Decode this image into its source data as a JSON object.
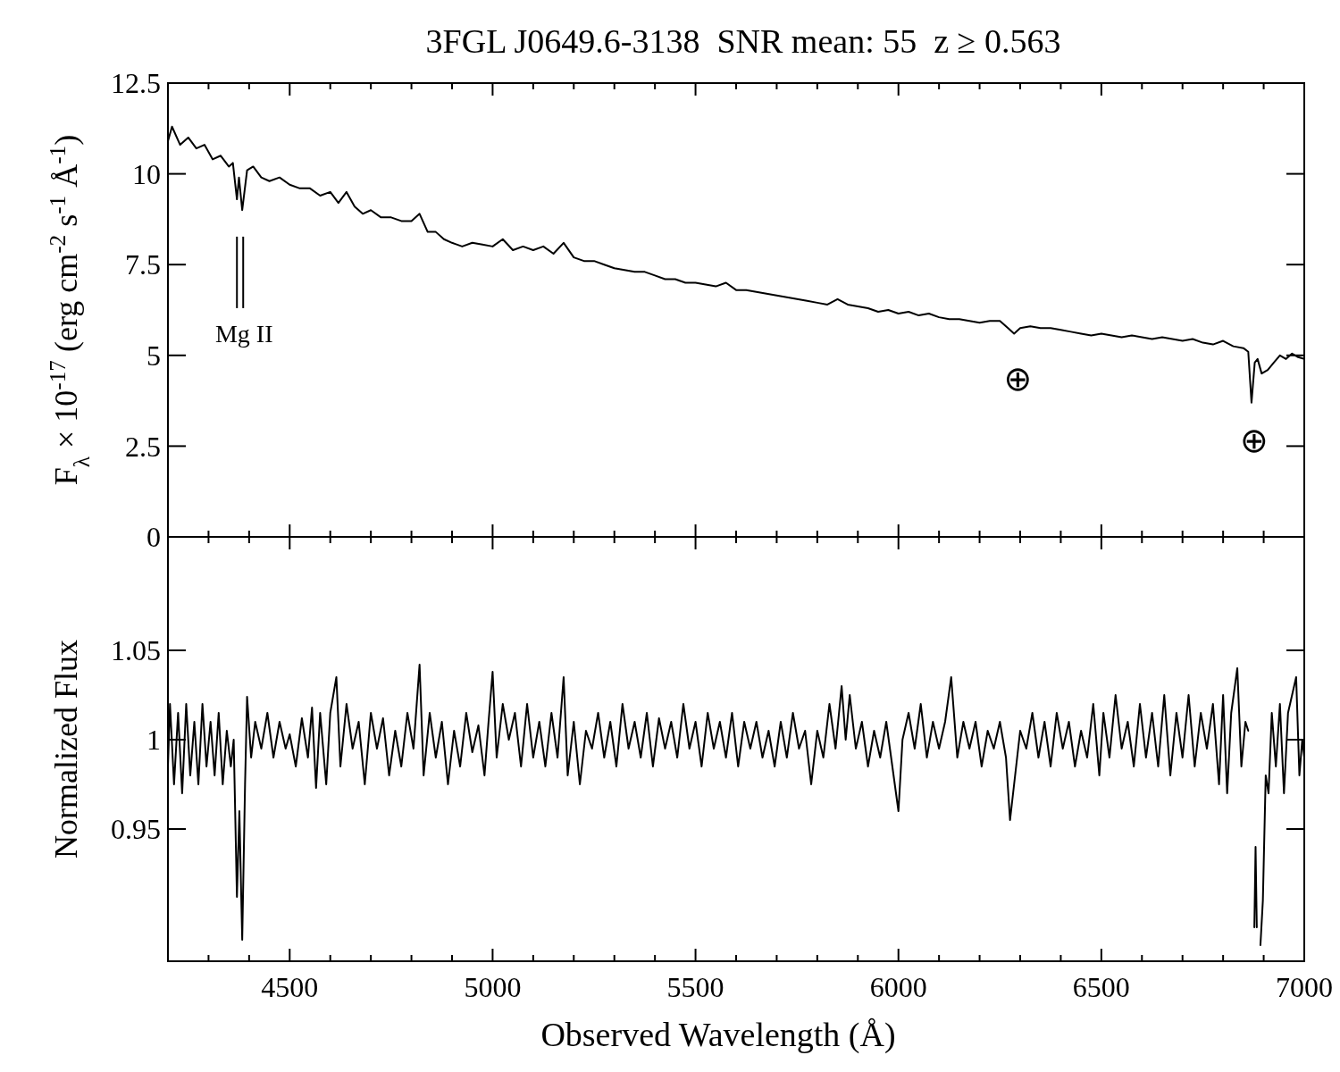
{
  "chart_data": [
    {
      "type": "line",
      "title": "3FGL J0649.6-3138  SNR mean: 55  z ≥ 0.563",
      "ylabel": "F$_{λ}$ × 10$^{-17}$ (erg cm$^{-2}$ s$^{-1}$ Å$^{-1}$)",
      "xlim": [
        4200,
        7000
      ],
      "ylim": [
        0,
        12.5
      ],
      "yticks": [
        0,
        2.5,
        5,
        7.5,
        10,
        12.5
      ],
      "xticks": [
        {
          "value": 4300,
          "label": null
        },
        {
          "value": 4400,
          "label": null
        },
        4500,
        {
          "value": 4600,
          "label": null
        },
        {
          "value": 4700,
          "label": null
        },
        {
          "value": 4800,
          "label": null
        },
        {
          "value": 4900,
          "label": null
        },
        5000,
        {
          "value": 5100,
          "label": null
        },
        {
          "value": 5200,
          "label": null
        },
        {
          "value": 5300,
          "label": null
        },
        {
          "value": 5400,
          "label": null
        },
        5500,
        {
          "value": 5600,
          "label": null
        },
        {
          "value": 5700,
          "label": null
        },
        {
          "value": 5800,
          "label": null
        },
        {
          "value": 5900,
          "label": null
        },
        6000,
        {
          "value": 6100,
          "label": null
        },
        {
          "value": 6200,
          "label": null
        },
        {
          "value": 6300,
          "label": null
        },
        {
          "value": 6400,
          "label": null
        },
        6500,
        {
          "value": 6600,
          "label": null
        },
        {
          "value": 6700,
          "label": null
        },
        {
          "value": 6800,
          "label": null
        },
        {
          "value": 6900,
          "label": null
        },
        7000
      ],
      "tick_labels": "y",
      "grid": false,
      "annotations": [
        "Mg II",
        "⊕",
        "⊕"
      ],
      "series": [
        {
          "color": "#000000",
          "x": [
            4200,
            4210,
            4230,
            4250,
            4270,
            4290,
            4310,
            4330,
            4350,
            4360,
            4370,
            4375,
            4383,
            4395,
            4410,
            4430,
            4450,
            4475,
            4500,
            4525,
            4550,
            4575,
            4600,
            4620,
            4640,
            4660,
            4680,
            4700,
            4725,
            4750,
            4775,
            4800,
            4820,
            4840,
            4860,
            4880,
            4900,
            4925,
            4950,
            4975,
            5000,
            5025,
            5050,
            5075,
            5100,
            5125,
            5150,
            5175,
            5200,
            5225,
            5250,
            5275,
            5300,
            5325,
            5350,
            5375,
            5400,
            5425,
            5450,
            5475,
            5500,
            5525,
            5550,
            5575,
            5600,
            5625,
            5650,
            5675,
            5700,
            5725,
            5750,
            5775,
            5800,
            5825,
            5850,
            5875,
            5900,
            5925,
            5950,
            5975,
            6000,
            6025,
            6050,
            6075,
            6100,
            6125,
            6150,
            6175,
            6200,
            6225,
            6250,
            6270,
            6285,
            6300,
            6325,
            6350,
            6375,
            6400,
            6425,
            6450,
            6475,
            6500,
            6525,
            6550,
            6575,
            6600,
            6625,
            6650,
            6675,
            6700,
            6725,
            6750,
            6775,
            6800,
            6825,
            6850,
            6862,
            6870,
            6878,
            6885,
            6895,
            6910,
            6925,
            6940,
            6955,
            6970,
            6985,
            7000
          ],
          "values": [
            10.9,
            11.3,
            10.8,
            11.0,
            10.7,
            10.8,
            10.4,
            10.5,
            10.2,
            10.3,
            9.3,
            9.9,
            9.0,
            10.1,
            10.2,
            9.9,
            9.8,
            9.9,
            9.7,
            9.6,
            9.6,
            9.4,
            9.5,
            9.2,
            9.5,
            9.1,
            8.9,
            9.0,
            8.8,
            8.8,
            8.7,
            8.7,
            8.9,
            8.4,
            8.4,
            8.2,
            8.1,
            8.0,
            8.1,
            8.05,
            8.0,
            8.2,
            7.9,
            8.0,
            7.9,
            8.0,
            7.8,
            8.1,
            7.7,
            7.6,
            7.6,
            7.5,
            7.4,
            7.35,
            7.3,
            7.3,
            7.2,
            7.1,
            7.1,
            7.0,
            7.0,
            6.95,
            6.9,
            7.0,
            6.8,
            6.8,
            6.75,
            6.7,
            6.65,
            6.6,
            6.55,
            6.5,
            6.45,
            6.4,
            6.55,
            6.4,
            6.35,
            6.3,
            6.2,
            6.25,
            6.15,
            6.2,
            6.1,
            6.15,
            6.05,
            6.0,
            6.0,
            5.95,
            5.9,
            5.95,
            5.95,
            5.75,
            5.6,
            5.75,
            5.8,
            5.75,
            5.75,
            5.7,
            5.65,
            5.6,
            5.55,
            5.6,
            5.55,
            5.5,
            5.55,
            5.5,
            5.45,
            5.5,
            5.45,
            5.4,
            5.45,
            5.35,
            5.3,
            5.4,
            5.25,
            5.2,
            5.1,
            3.7,
            4.8,
            4.9,
            4.5,
            4.6,
            4.8,
            5.0,
            4.9,
            5.05,
            4.95,
            4.9
          ]
        }
      ]
    },
    {
      "type": "line",
      "xlabel": "Observed Wavelength (Å)",
      "ylabel": "Normalized Flux",
      "xlim": [
        4200,
        7000
      ],
      "ylim": [
        0.876,
        1.1135
      ],
      "yticks": [
        0.95,
        1,
        1.05
      ],
      "xticks": [
        {
          "value": 4300,
          "label": null
        },
        {
          "value": 4400,
          "label": null
        },
        4500,
        {
          "value": 4600,
          "label": null
        },
        {
          "value": 4700,
          "label": null
        },
        {
          "value": 4800,
          "label": null
        },
        {
          "value": 4900,
          "label": null
        },
        5000,
        {
          "value": 5100,
          "label": null
        },
        {
          "value": 5200,
          "label": null
        },
        {
          "value": 5300,
          "label": null
        },
        {
          "value": 5400,
          "label": null
        },
        5500,
        {
          "value": 5600,
          "label": null
        },
        {
          "value": 5700,
          "label": null
        },
        {
          "value": 5800,
          "label": null
        },
        {
          "value": 5900,
          "label": null
        },
        6000,
        {
          "value": 6100,
          "label": null
        },
        {
          "value": 6200,
          "label": null
        },
        {
          "value": 6300,
          "label": null
        },
        {
          "value": 6400,
          "label": null
        },
        6500,
        {
          "value": 6600,
          "label": null
        },
        {
          "value": 6700,
          "label": null
        },
        {
          "value": 6800,
          "label": null
        },
        {
          "value": 6900,
          "label": null
        },
        7000
      ],
      "grid": false,
      "series": [
        {
          "color": "#000000",
          "x": [
            4200,
            4205,
            4215,
            4225,
            4235,
            4245,
            4255,
            4265,
            4275,
            4285,
            4295,
            4305,
            4315,
            4325,
            4335,
            4345,
            4355,
            4362,
            4370,
            4376,
            4383,
            4390,
            4395,
            4405,
            4415,
            4430,
            4445,
            4460,
            4475,
            4490,
            4500,
            4515,
            4530,
            4545,
            4555,
            4565,
            4575,
            4590,
            4600,
            4615,
            4625,
            4640,
            4655,
            4670,
            4685,
            4700,
            4715,
            4730,
            4745,
            4760,
            4775,
            4790,
            4805,
            4820,
            4830,
            4845,
            4860,
            4875,
            4890,
            4905,
            4920,
            4935,
            4950,
            4965,
            4980,
            4990,
            5000,
            5010,
            5025,
            5040,
            5055,
            5070,
            5085,
            5100,
            5115,
            5130,
            5145,
            5160,
            5175,
            5185,
            5200,
            5215,
            5230,
            5245,
            5260,
            5275,
            5290,
            5305,
            5320,
            5335,
            5350,
            5365,
            5380,
            5395,
            5410,
            5425,
            5440,
            5455,
            5470,
            5485,
            5500,
            5515,
            5530,
            5545,
            5560,
            5575,
            5590,
            5605,
            5620,
            5635,
            5650,
            5665,
            5680,
            5695,
            5710,
            5725,
            5740,
            5755,
            5770,
            5785,
            5800,
            5815,
            5830,
            5845,
            5860,
            5870,
            5880,
            5895,
            5910,
            5925,
            5940,
            5955,
            5970,
            5985,
            6000,
            6010,
            6025,
            6040,
            6055,
            6070,
            6085,
            6100,
            6115,
            6130,
            6145,
            6160,
            6175,
            6190,
            6205,
            6220,
            6235,
            6250,
            6265,
            6275,
            6285,
            6300,
            6315,
            6330,
            6345,
            6360,
            6375,
            6390,
            6405,
            6420,
            6435,
            6450,
            6465,
            6480,
            6495,
            6505,
            6520,
            6535,
            6550,
            6565,
            6580,
            6595,
            6610,
            6625,
            6640,
            6655,
            6670,
            6685,
            6700,
            6715,
            6730,
            6745,
            6760,
            6775,
            6790,
            6800,
            6810,
            6820,
            6835,
            6845,
            6855,
            6862,
            6868,
            6877,
            6880,
            6883,
            6888,
            6892,
            6898,
            6905,
            6912,
            6920,
            6930,
            6940,
            6950,
            6960,
            6970,
            6980,
            6988,
            6995,
            7000
          ],
          "values": [
            0.985,
            1.02,
            0.975,
            1.015,
            0.97,
            1.02,
            0.98,
            1.01,
            0.975,
            1.02,
            0.985,
            1.01,
            0.98,
            1.015,
            0.975,
            1.005,
            0.985,
            1.0,
            0.912,
            0.96,
            0.888,
            0.975,
            1.024,
            0.99,
            1.01,
            0.995,
            1.015,
            0.99,
            1.01,
            0.995,
            1.003,
            0.985,
            1.012,
            0.99,
            1.018,
            0.973,
            1.015,
            0.975,
            1.015,
            1.035,
            0.985,
            1.02,
            0.995,
            1.01,
            0.975,
            1.015,
            0.995,
            1.012,
            0.98,
            1.005,
            0.985,
            1.015,
            0.995,
            1.042,
            0.98,
            1.015,
            0.99,
            1.01,
            0.975,
            1.005,
            0.985,
            1.015,
            0.993,
            1.008,
            0.98,
            1.01,
            1.038,
            0.99,
            1.02,
            1.0,
            1.015,
            0.985,
            1.02,
            0.99,
            1.01,
            0.985,
            1.015,
            0.99,
            1.035,
            0.98,
            1.01,
            0.975,
            1.005,
            0.995,
            1.015,
            0.99,
            1.01,
            0.985,
            1.02,
            0.995,
            1.01,
            0.99,
            1.015,
            0.985,
            1.012,
            0.995,
            1.01,
            0.99,
            1.02,
            0.995,
            1.01,
            0.985,
            1.015,
            0.995,
            1.01,
            0.99,
            1.015,
            0.985,
            1.01,
            0.995,
            1.01,
            0.99,
            1.005,
            0.985,
            1.01,
            0.99,
            1.015,
            0.995,
            1.005,
            0.975,
            1.005,
            0.99,
            1.02,
            0.995,
            1.03,
            1.0,
            1.025,
            0.995,
            1.01,
            0.985,
            1.005,
            0.99,
            1.01,
            0.985,
            0.96,
            1.0,
            1.015,
            0.995,
            1.02,
            0.99,
            1.01,
            0.995,
            1.01,
            1.035,
            0.99,
            1.01,
            0.995,
            1.01,
            0.985,
            1.005,
            0.995,
            1.01,
            0.99,
            0.955,
            0.975,
            1.005,
            0.995,
            1.015,
            0.99,
            1.01,
            0.985,
            1.015,
            0.995,
            1.01,
            0.985,
            1.005,
            0.99,
            1.02,
            0.98,
            1.015,
            0.99,
            1.025,
            0.995,
            1.01,
            0.985,
            1.02,
            0.99,
            1.015,
            0.985,
            1.025,
            0.98,
            1.015,
            0.99,
            1.025,
            0.985,
            1.015,
            0.995,
            1.02,
            0.975,
            1.025,
            0.97,
            1.015,
            1.04,
            0.985,
            1.01,
            1.005,
            null,
            0.895,
            0.94,
            0.895,
            null,
            0.885,
            0.91,
            0.98,
            0.97,
            1.015,
            0.985,
            1.02,
            0.97,
            1.015,
            1.025,
            1.035,
            0.98,
            1.0,
            0.99
          ]
        }
      ]
    }
  ]
}
